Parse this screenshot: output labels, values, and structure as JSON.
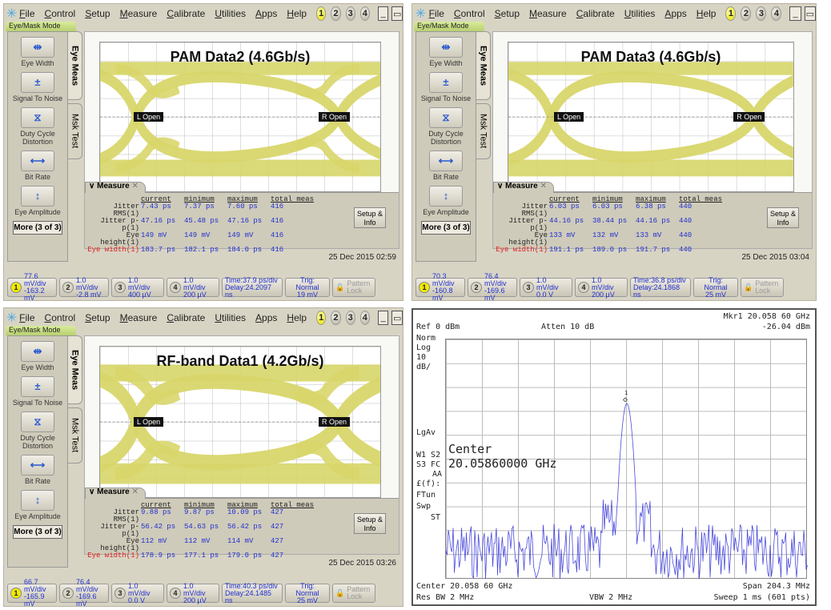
{
  "menu": {
    "items": [
      "File",
      "Control",
      "Setup",
      "Measure",
      "Calibrate",
      "Utilities",
      "Apps",
      "Help"
    ],
    "channels": [
      "1",
      "2",
      "3",
      "4"
    ],
    "minimize": "_",
    "restore": "🗗",
    "mode_label": "Eye/Mask Mode"
  },
  "sidebar": {
    "buttons": [
      {
        "label": "Eye Width",
        "icon": "eye-width-icon"
      },
      {
        "label": "Signal To Noise",
        "icon": "signal-to-noise-icon"
      },
      {
        "label": "Duty Cycle Distortion",
        "icon": "duty-cycle-icon"
      },
      {
        "label": "Bit Rate",
        "icon": "bit-rate-icon"
      },
      {
        "label": "Eye Amplitude",
        "icon": "eye-amplitude-icon"
      }
    ],
    "more": "More (3 of 3)",
    "tabs": [
      "Eye Meas",
      "Msk Test"
    ]
  },
  "measure_headers": [
    "current",
    "minimum",
    "maximum",
    "total meas"
  ],
  "measure_labels": [
    "Jitter RMS(1)",
    "Jitter p-p(1)",
    "Eye height(1)",
    "Eye width(1)"
  ],
  "measure_tab": "Measure",
  "setup_info": "Setup & Info",
  "open_labels": {
    "left": "L Open",
    "right": "R Open"
  },
  "panels": [
    {
      "title": "PAM Data2 (4.6Gb/s)",
      "rows": [
        [
          "7.43 ps",
          "7.37 ps",
          "7.60 ps",
          "416"
        ],
        [
          "47.16 ps",
          "45.48 ps",
          "47.16 ps",
          "416"
        ],
        [
          "149 mV",
          "149 mV",
          "149 mV",
          "416"
        ],
        [
          "183.7 ps",
          "182.1 ps",
          "184.0 ps",
          "416"
        ]
      ],
      "datetime": "25 Dec 2015  02:59",
      "status": {
        "ch1": [
          "77.6 mV/div",
          "-163.2 mV"
        ],
        "ch2": [
          "1.0 mV/div",
          "-2.8 mV"
        ],
        "ch3": [
          "1.0 mV/div",
          "400 µV"
        ],
        "ch4": [
          "1.0 mV/div",
          "200 µV"
        ],
        "time": [
          "Time:37.9 ps/div",
          "Delay:24.2097 ns"
        ],
        "trig": [
          "Trig: Normal",
          "19 mV"
        ],
        "pattern": [
          "Pattern",
          "Lock"
        ]
      }
    },
    {
      "title": "PAM Data3 (4.6Gb/s)",
      "rows": [
        [
          "6.03 ps",
          "6.03 ps",
          "6.38 ps",
          "440"
        ],
        [
          "44.16 ps",
          "38.44 ps",
          "44.16 ps",
          "440"
        ],
        [
          "133 mV",
          "132 mV",
          "133 mV",
          "440"
        ],
        [
          "191.1 ps",
          "189.0 ps",
          "191.7 ps",
          "440"
        ]
      ],
      "datetime": "25 Dec 2015  03:04",
      "status": {
        "ch1": [
          "70.3 mV/div",
          "-160.8 mV"
        ],
        "ch2": [
          "76.4 mV/div",
          "-169.6 mV"
        ],
        "ch3": [
          "1.0 mV/div",
          "0.0 V"
        ],
        "ch4": [
          "1.0 mV/div",
          "200 µV"
        ],
        "time": [
          "Time:36.8 ps/div",
          "Delay:24.1868 ns"
        ],
        "trig": [
          "Trig: Normal",
          "25 mV"
        ],
        "pattern": [
          "Pattern",
          "Lock"
        ]
      }
    },
    {
      "title": "RF-band Data1 (4.2Gb/s)",
      "rows": [
        [
          "9.88 ps",
          "9.87 ps",
          "10.09 ps",
          "427"
        ],
        [
          "56.42 ps",
          "54.63 ps",
          "56.42 ps",
          "427"
        ],
        [
          "112 mV",
          "112 mV",
          "114 mV",
          "427"
        ],
        [
          "178.9 ps",
          "177.1 ps",
          "179.0 ps",
          "427"
        ]
      ],
      "datetime": "25 Dec 2015  03:26",
      "status": {
        "ch1": [
          "66.7 mV/div",
          "-165.9 mV"
        ],
        "ch2": [
          "76.4 mV/div",
          "-169.6 mV"
        ],
        "ch3": [
          "1.0 mV/div",
          "0.0 V"
        ],
        "ch4": [
          "1.0 mV/div",
          "200 µV"
        ],
        "time": [
          "Time:40.3 ps/div",
          "Delay:24.1485 ns"
        ],
        "trig": [
          "Trig: Normal",
          "25 mV"
        ],
        "pattern": [
          "Pattern",
          "Lock"
        ]
      }
    }
  ],
  "spectrum": {
    "marker": "Mkr1  20.058 60 GHz",
    "marker_level": "-26.04 dBm",
    "ref": "Ref 0 dBm",
    "atten": "Atten 10 dB",
    "left_labels": [
      "Norm",
      "Log",
      "10",
      "dB/"
    ],
    "lgav": "LgAv",
    "w1s2": "W1  S2",
    "s3fc": "S3  FC",
    "aa": "AA",
    "ff": "£(f):",
    "ftun": "FTun",
    "swp": "Swp",
    "st": "ST",
    "center_big1": "Center",
    "center_big2": "20.05860000 GHz",
    "marker_num": "1",
    "center": "Center 20.058 60 GHz",
    "span": "Span 204.3 MHz",
    "rbw": "Res BW 2 MHz",
    "vbw": "VBW 2 MHz",
    "sweep": "Sweep 1 ms (601 pts)"
  },
  "colors": {
    "eye_trace": "#d8d66a",
    "spectrum_trace": "#2a2ad8",
    "measure_value": "#2030d0",
    "eye_width_label": "#e02020"
  }
}
